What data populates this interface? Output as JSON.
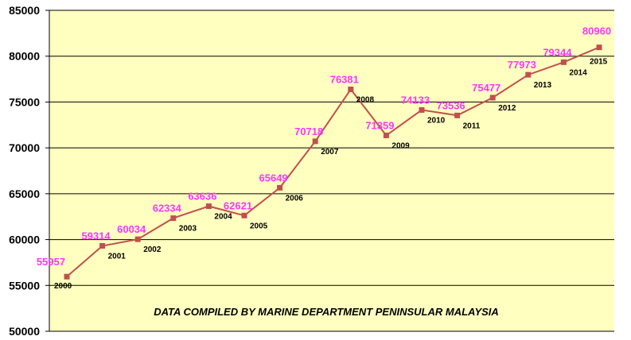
{
  "chart_data": {
    "type": "line",
    "title": "",
    "xlabel": "",
    "ylabel": "",
    "annotation": "DATA COMPILED BY MARINE DEPARTMENT PENINSULAR MALAYSIA",
    "categories": [
      "2000",
      "2001",
      "2002",
      "2003",
      "2004",
      "2005",
      "2006",
      "2007",
      "2008",
      "2009",
      "2010",
      "2011",
      "2012",
      "2013",
      "2014",
      "2015"
    ],
    "series": [
      {
        "values": [
          55957,
          59314,
          60034,
          62334,
          63636,
          62621,
          65649,
          70718,
          76381,
          71359,
          74133,
          73536,
          75477,
          77973,
          79344,
          80960
        ],
        "data_labels": [
          "55957",
          "59314",
          "60034",
          "62334",
          "63636",
          "62621",
          "65649",
          "70718",
          "76381",
          "71359",
          "74133",
          "73536",
          "75477",
          "77973",
          "79344",
          "80960"
        ]
      }
    ],
    "ylim": [
      50000,
      85000
    ],
    "yticks": [
      50000,
      55000,
      60000,
      65000,
      70000,
      75000,
      80000,
      85000
    ],
    "ytick_labels": [
      "50000",
      "55000",
      "60000",
      "65000",
      "70000",
      "75000",
      "80000",
      "85000"
    ],
    "grid": true,
    "legend": "none",
    "colors": {
      "plot_background": "#ffffc0",
      "line": "#c0504d",
      "marker": "#c0504d",
      "data_label": "#ff33ff",
      "grid": "#000000"
    }
  }
}
